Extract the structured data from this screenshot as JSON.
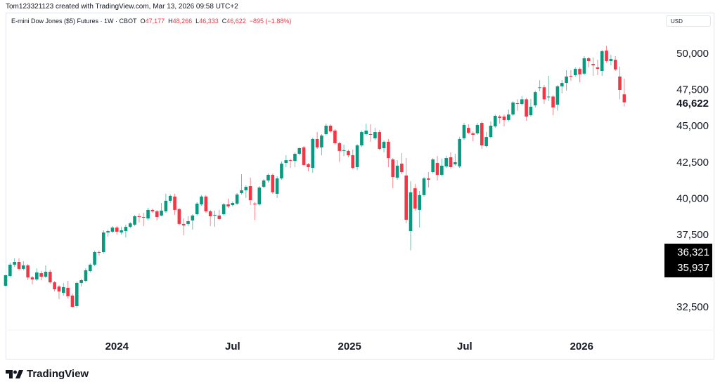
{
  "header": {
    "credit": "Tom123321123 created with TradingView.com, Mar 13, 2026 09:58 UTC+2",
    "symbol": "E-mini Dow Jones ($5) Futures · 1W · CBOT",
    "o_label": "O",
    "o_value": "47,177",
    "h_label": "H",
    "h_value": "48,266",
    "l_label": "L",
    "l_value": "46,333",
    "c_label": "C",
    "c_value": "46,622",
    "change": "−895 (−1.88%)",
    "currency": "USD"
  },
  "price_badges": {
    "last": "46,622",
    "box_top": "36,321",
    "box_bottom": "35,937"
  },
  "brand": {
    "name": "TradingView",
    "logo_icon": "tradingview-logo-icon"
  },
  "colors": {
    "up": "#089981",
    "down": "#f23645"
  },
  "chart_data": {
    "type": "candlestick",
    "interval": "1W",
    "ylim": [
      30500,
      51000
    ],
    "y_ticks": [
      {
        "value": 50000,
        "label": "50,000"
      },
      {
        "value": 47500,
        "label": "47,500"
      },
      {
        "value": 45000,
        "label": "45,000"
      },
      {
        "value": 42500,
        "label": "42,500"
      },
      {
        "value": 40000,
        "label": "40,000"
      },
      {
        "value": 37500,
        "label": "37,500"
      },
      {
        "value": 32500,
        "label": "32,500"
      }
    ],
    "x_ticks": [
      {
        "date": "2024-01-01",
        "label": "2024"
      },
      {
        "date": "2024-07-01",
        "label": "Jul"
      },
      {
        "date": "2025-01-01",
        "label": "2025"
      },
      {
        "date": "2025-07-01",
        "label": "Jul"
      },
      {
        "date": "2026-01-01",
        "label": "2026"
      }
    ],
    "columns": [
      "date",
      "open",
      "high",
      "low",
      "close"
    ],
    "candles": [
      [
        "2023-07-10",
        33960,
        34720,
        33920,
        34690
      ],
      [
        "2023-07-17",
        34640,
        35560,
        34560,
        35420
      ],
      [
        "2023-07-24",
        35420,
        35850,
        35270,
        35610
      ],
      [
        "2023-07-31",
        35610,
        35850,
        35030,
        35130
      ],
      [
        "2023-08-07",
        35130,
        35660,
        35030,
        35370
      ],
      [
        "2023-08-14",
        35370,
        35470,
        34350,
        34540
      ],
      [
        "2023-08-21",
        34540,
        34640,
        34060,
        34400
      ],
      [
        "2023-08-28",
        34400,
        35170,
        34300,
        34880
      ],
      [
        "2023-09-04",
        34830,
        34980,
        34350,
        34590
      ],
      [
        "2023-09-11",
        34590,
        35370,
        34500,
        34930
      ],
      [
        "2023-09-18",
        34930,
        35080,
        34110,
        34200
      ],
      [
        "2023-09-25",
        34200,
        34300,
        33570,
        33720
      ],
      [
        "2023-10-02",
        33910,
        34010,
        33040,
        33570
      ],
      [
        "2023-10-09",
        33480,
        34160,
        33290,
        33870
      ],
      [
        "2023-10-16",
        33820,
        34300,
        33090,
        33240
      ],
      [
        "2023-10-23",
        33290,
        33430,
        32460,
        32510
      ],
      [
        "2023-10-30",
        32560,
        34250,
        32460,
        34160
      ],
      [
        "2023-11-06",
        34160,
        34450,
        33910,
        34350
      ],
      [
        "2023-11-13",
        34300,
        35170,
        34200,
        35030
      ],
      [
        "2023-11-20",
        34980,
        35510,
        34880,
        35420
      ],
      [
        "2023-11-27",
        35420,
        36390,
        35320,
        36290
      ],
      [
        "2023-12-04",
        36290,
        36390,
        36050,
        36240
      ],
      [
        "2023-12-11",
        36290,
        37790,
        36190,
        37640
      ],
      [
        "2023-12-18",
        37640,
        37840,
        37350,
        37740
      ],
      [
        "2023-12-25",
        37690,
        38080,
        37600,
        37980
      ],
      [
        "2024-01-01",
        37980,
        38080,
        37500,
        37690
      ],
      [
        "2024-01-08",
        37640,
        38030,
        37500,
        37790
      ],
      [
        "2024-01-15",
        37740,
        38180,
        37300,
        38030
      ],
      [
        "2024-01-22",
        38030,
        38370,
        37930,
        38270
      ],
      [
        "2024-01-29",
        38180,
        38850,
        38080,
        38760
      ],
      [
        "2024-02-05",
        38760,
        38950,
        38320,
        38710
      ],
      [
        "2024-02-12",
        38710,
        39000,
        38080,
        38660
      ],
      [
        "2024-02-19",
        38610,
        39340,
        38470,
        39200
      ],
      [
        "2024-02-26",
        39200,
        39290,
        39000,
        39100
      ],
      [
        "2024-03-04",
        39100,
        39200,
        38470,
        38710
      ],
      [
        "2024-03-11",
        38810,
        39680,
        38760,
        39150
      ],
      [
        "2024-03-18",
        39100,
        40320,
        39000,
        39830
      ],
      [
        "2024-03-25",
        39830,
        40260,
        39680,
        40170
      ],
      [
        "2024-04-01",
        40120,
        40320,
        38850,
        39200
      ],
      [
        "2024-04-08",
        39250,
        39340,
        38130,
        38230
      ],
      [
        "2024-04-15",
        38230,
        38610,
        37450,
        38130
      ],
      [
        "2024-04-22",
        38230,
        38760,
        38080,
        38420
      ],
      [
        "2024-04-29",
        38470,
        38900,
        37840,
        38810
      ],
      [
        "2024-05-06",
        38900,
        39730,
        38810,
        39630
      ],
      [
        "2024-05-13",
        39580,
        40220,
        39490,
        40120
      ],
      [
        "2024-05-20",
        40120,
        40220,
        39000,
        39100
      ],
      [
        "2024-05-27",
        39100,
        39200,
        38080,
        38760
      ],
      [
        "2024-06-03",
        38810,
        39150,
        38030,
        38860
      ],
      [
        "2024-06-10",
        38810,
        39200,
        38470,
        38570
      ],
      [
        "2024-06-17",
        38900,
        39680,
        38810,
        39580
      ],
      [
        "2024-06-24",
        39580,
        39970,
        39340,
        39440
      ],
      [
        "2024-07-01",
        39530,
        39780,
        39440,
        39680
      ],
      [
        "2024-07-08",
        39630,
        40360,
        39530,
        40260
      ],
      [
        "2024-07-15",
        40360,
        41660,
        40260,
        40550
      ],
      [
        "2024-07-22",
        40550,
        40890,
        40020,
        40790
      ],
      [
        "2024-07-29",
        40840,
        41420,
        39530,
        39870
      ],
      [
        "2024-08-05",
        39630,
        39730,
        38500,
        39580
      ],
      [
        "2024-08-12",
        39580,
        40840,
        39490,
        40740
      ],
      [
        "2024-08-19",
        40790,
        41330,
        40690,
        41230
      ],
      [
        "2024-08-26",
        41230,
        41710,
        41080,
        41620
      ],
      [
        "2024-09-02",
        41620,
        41710,
        40310,
        40410
      ],
      [
        "2024-09-09",
        40310,
        41520,
        40020,
        41370
      ],
      [
        "2024-09-16",
        41370,
        42540,
        41280,
        42390
      ],
      [
        "2024-09-23",
        42440,
        42970,
        42150,
        42630
      ],
      [
        "2024-09-30",
        42630,
        42730,
        42100,
        42580
      ],
      [
        "2024-10-07",
        42580,
        43170,
        42150,
        43070
      ],
      [
        "2024-10-14",
        43070,
        43510,
        42970,
        43460
      ],
      [
        "2024-10-21",
        43510,
        43600,
        42250,
        42300
      ],
      [
        "2024-10-28",
        42350,
        42440,
        41860,
        42150
      ],
      [
        "2024-11-04",
        42100,
        44190,
        41760,
        44090
      ],
      [
        "2024-11-11",
        44090,
        44580,
        43410,
        43510
      ],
      [
        "2024-11-18",
        43510,
        44430,
        42970,
        44330
      ],
      [
        "2024-11-25",
        44430,
        45160,
        44330,
        45010
      ],
      [
        "2024-12-02",
        45010,
        45110,
        44530,
        44620
      ],
      [
        "2024-12-09",
        44670,
        44770,
        43700,
        43800
      ],
      [
        "2024-12-16",
        43800,
        43900,
        42510,
        43270
      ],
      [
        "2024-12-23",
        43320,
        43700,
        42920,
        43320
      ],
      [
        "2024-12-30",
        43270,
        43360,
        42820,
        42970
      ],
      [
        "2025-01-06",
        42970,
        43360,
        42000,
        42100
      ],
      [
        "2025-01-13",
        42150,
        43740,
        41950,
        43650
      ],
      [
        "2025-01-20",
        43650,
        44670,
        43550,
        44570
      ],
      [
        "2025-01-27",
        44430,
        45160,
        44330,
        44670
      ],
      [
        "2025-02-03",
        44430,
        45110,
        43900,
        44380
      ],
      [
        "2025-02-10",
        44140,
        44860,
        44040,
        44570
      ],
      [
        "2025-02-17",
        44570,
        44720,
        43310,
        43410
      ],
      [
        "2025-02-24",
        43460,
        43990,
        43170,
        43900
      ],
      [
        "2025-03-03",
        43900,
        44090,
        42150,
        42780
      ],
      [
        "2025-03-10",
        42680,
        42780,
        40690,
        41470
      ],
      [
        "2025-03-17",
        41420,
        42630,
        41280,
        42250
      ],
      [
        "2025-03-24",
        42390,
        43120,
        41660,
        41810
      ],
      [
        "2025-03-31",
        41570,
        42780,
        38270,
        38520
      ],
      [
        "2025-04-07",
        37740,
        41180,
        36410,
        40410
      ],
      [
        "2025-04-14",
        40690,
        40990,
        39150,
        39290
      ],
      [
        "2025-04-21",
        39200,
        40500,
        37980,
        40220
      ],
      [
        "2025-04-28",
        40220,
        41470,
        40120,
        41370
      ],
      [
        "2025-05-05",
        41370,
        41810,
        40740,
        41280
      ],
      [
        "2025-05-12",
        41810,
        42780,
        41710,
        42680
      ],
      [
        "2025-05-19",
        42440,
        42920,
        41230,
        41620
      ],
      [
        "2025-05-26",
        41620,
        42730,
        41520,
        42250
      ],
      [
        "2025-06-02",
        42200,
        42920,
        42100,
        42780
      ],
      [
        "2025-06-09",
        42830,
        43170,
        42050,
        42150
      ],
      [
        "2025-06-16",
        42340,
        43070,
        42250,
        42490
      ],
      [
        "2025-06-23",
        42200,
        44240,
        42100,
        44090
      ],
      [
        "2025-06-30",
        44140,
        45200,
        44040,
        45060
      ],
      [
        "2025-07-07",
        44860,
        45110,
        44430,
        44520
      ],
      [
        "2025-07-14",
        44480,
        44620,
        43940,
        44380
      ],
      [
        "2025-07-21",
        44480,
        45200,
        44380,
        45060
      ],
      [
        "2025-07-28",
        45200,
        45300,
        43410,
        43650
      ],
      [
        "2025-08-04",
        43600,
        44570,
        43510,
        44230
      ],
      [
        "2025-08-11",
        44230,
        45300,
        44140,
        45010
      ],
      [
        "2025-08-18",
        44960,
        45780,
        44860,
        45690
      ],
      [
        "2025-08-25",
        45640,
        45730,
        45160,
        45540
      ],
      [
        "2025-09-01",
        45640,
        45780,
        44960,
        45400
      ],
      [
        "2025-09-08",
        45400,
        46120,
        45300,
        45780
      ],
      [
        "2025-09-15",
        45780,
        46700,
        45690,
        46610
      ],
      [
        "2025-09-22",
        46560,
        46830,
        46040,
        46510
      ],
      [
        "2025-09-29",
        46510,
        47060,
        46410,
        46830
      ],
      [
        "2025-10-06",
        46830,
        46930,
        45350,
        45640
      ],
      [
        "2025-10-13",
        45730,
        46850,
        45640,
        46320
      ],
      [
        "2025-10-20",
        46410,
        47430,
        46270,
        47330
      ],
      [
        "2025-10-27",
        47660,
        48150,
        47380,
        47660
      ],
      [
        "2025-11-03",
        47660,
        47820,
        46510,
        46830
      ],
      [
        "2025-11-10",
        47020,
        48450,
        46710,
        47020
      ],
      [
        "2025-11-17",
        47020,
        47110,
        45730,
        46270
      ],
      [
        "2025-11-24",
        46460,
        47820,
        46040,
        47720
      ],
      [
        "2025-12-01",
        47720,
        48160,
        47240,
        47960
      ],
      [
        "2025-12-08",
        47960,
        48840,
        47430,
        48400
      ],
      [
        "2025-12-15",
        48450,
        48840,
        48110,
        48400
      ],
      [
        "2025-12-22",
        48500,
        49030,
        48400,
        48930
      ],
      [
        "2025-12-29",
        48930,
        49030,
        48010,
        48550
      ],
      [
        "2026-01-05",
        48600,
        49810,
        48500,
        49660
      ],
      [
        "2026-01-12",
        49660,
        49760,
        49030,
        49470
      ],
      [
        "2026-01-19",
        49270,
        49710,
        48450,
        49180
      ],
      [
        "2026-01-26",
        49030,
        49560,
        48500,
        48930
      ],
      [
        "2026-02-02",
        48790,
        50240,
        48450,
        50150
      ],
      [
        "2026-02-09",
        50190,
        50530,
        49370,
        49470
      ],
      [
        "2026-02-16",
        49470,
        49900,
        49180,
        49610
      ],
      [
        "2026-02-23",
        49560,
        49810,
        48790,
        48890
      ],
      [
        "2026-03-02",
        48400,
        49080,
        46830,
        47480
      ],
      [
        "2026-03-09",
        47177,
        48266,
        46333,
        46622
      ]
    ]
  }
}
